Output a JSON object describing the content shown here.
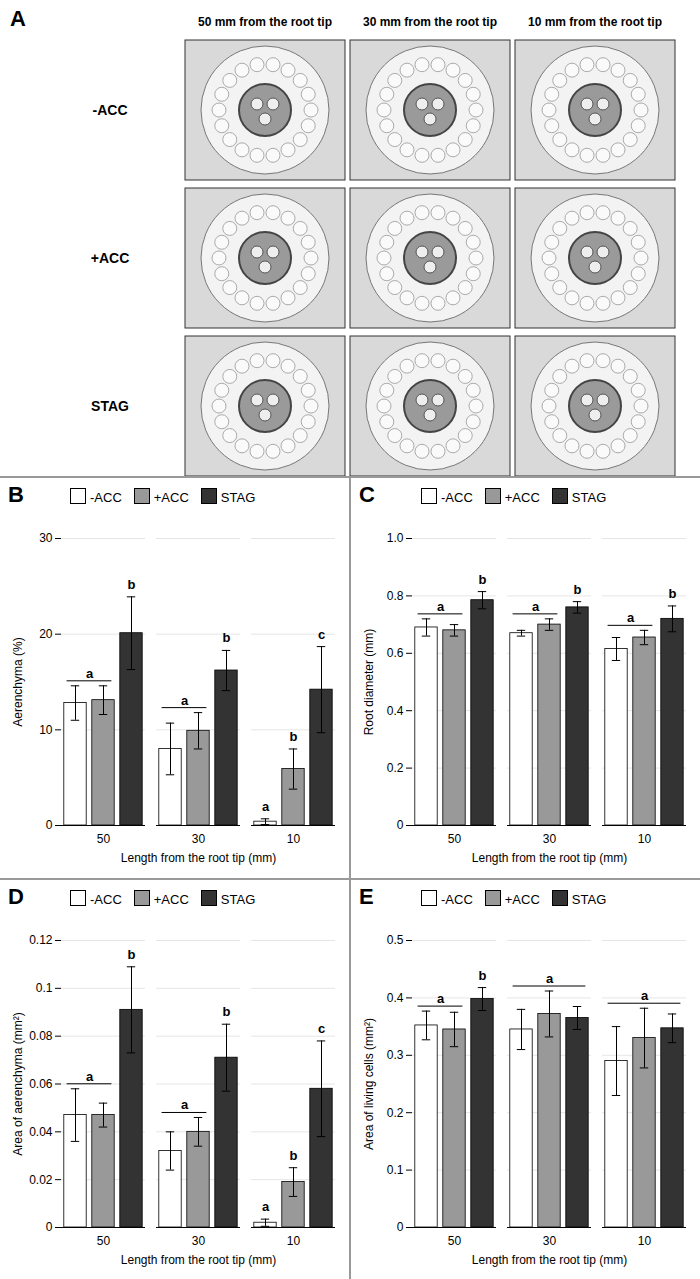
{
  "panel_a": {
    "label": "A",
    "columns": [
      "50 mm from the root tip",
      "30 mm from the root tip",
      "10 mm from the root tip"
    ],
    "rows": [
      "-ACC",
      "+ACC",
      "STAG"
    ]
  },
  "chart_data": [
    {
      "type": "bar",
      "title": "B",
      "categories": [
        "50",
        "30",
        "10"
      ],
      "xlabel": "Length from the root tip (mm)",
      "ylabel": "Aerenchyma (%)",
      "ylim": [
        0,
        30
      ],
      "yticks": [
        0,
        10,
        20,
        30
      ],
      "grid": true,
      "legend": "upper left",
      "series": [
        {
          "name": "-ACC",
          "color": "#ffffff",
          "values": [
            12.8,
            8.0,
            0.4
          ],
          "errors": [
            1.8,
            2.7,
            0.3
          ]
        },
        {
          "name": "+ACC",
          "color": "#999999",
          "values": [
            13.1,
            9.9,
            5.9
          ],
          "errors": [
            1.5,
            1.9,
            2.1
          ]
        },
        {
          "name": "STAG",
          "color": "#333333",
          "values": [
            20.1,
            16.2,
            14.2
          ],
          "errors": [
            3.8,
            2.1,
            4.5
          ]
        }
      ],
      "annotations": [
        {
          "text": "a",
          "category": "50",
          "series": [
            "-ACC",
            "+ACC"
          ]
        },
        {
          "text": "b",
          "category": "50",
          "series": [
            "STAG"
          ]
        },
        {
          "text": "a",
          "category": "30",
          "series": [
            "-ACC",
            "+ACC"
          ]
        },
        {
          "text": "b",
          "category": "30",
          "series": [
            "STAG"
          ]
        },
        {
          "text": "a",
          "category": "10",
          "series": [
            "-ACC"
          ]
        },
        {
          "text": "b",
          "category": "10",
          "series": [
            "+ACC"
          ]
        },
        {
          "text": "c",
          "category": "10",
          "series": [
            "STAG"
          ]
        }
      ]
    },
    {
      "type": "bar",
      "title": "C",
      "categories": [
        "50",
        "30",
        "10"
      ],
      "xlabel": "Length from the root tip (mm)",
      "ylabel": "Root diameter (mm)",
      "ylim": [
        0,
        1
      ],
      "yticks": [
        0,
        0.2,
        0.4,
        0.6,
        0.8,
        {
          "value": 1,
          "label": "1.0"
        }
      ],
      "grid": true,
      "legend": "upper left",
      "series": [
        {
          "name": "-ACC",
          "color": "#ffffff",
          "values": [
            0.69,
            0.67,
            0.615
          ],
          "errors": [
            0.03,
            0.01,
            0.04
          ]
        },
        {
          "name": "+ACC",
          "color": "#999999",
          "values": [
            0.68,
            0.7,
            0.655
          ],
          "errors": [
            0.02,
            0.02,
            0.025
          ]
        },
        {
          "name": "STAG",
          "color": "#333333",
          "values": [
            0.785,
            0.76,
            0.72
          ],
          "errors": [
            0.03,
            0.02,
            0.045
          ]
        }
      ],
      "annotations": [
        {
          "text": "a",
          "category": "50",
          "series": [
            "-ACC",
            "+ACC"
          ]
        },
        {
          "text": "b",
          "category": "50",
          "series": [
            "STAG"
          ]
        },
        {
          "text": "a",
          "category": "30",
          "series": [
            "-ACC",
            "+ACC"
          ]
        },
        {
          "text": "b",
          "category": "30",
          "series": [
            "STAG"
          ]
        },
        {
          "text": "a",
          "category": "10",
          "series": [
            "-ACC",
            "+ACC"
          ]
        },
        {
          "text": "b",
          "category": "10",
          "series": [
            "STAG"
          ]
        }
      ]
    },
    {
      "type": "bar",
      "title": "D",
      "categories": [
        "50",
        "30",
        "10"
      ],
      "xlabel": "Length from the root tip (mm)",
      "ylabel": "Area of aerenchyma (mm²)",
      "ylim": [
        0,
        0.12
      ],
      "yticks": [
        0,
        0.02,
        0.04,
        0.06,
        0.08,
        0.1,
        0.12
      ],
      "grid": true,
      "legend": "upper left",
      "series": [
        {
          "name": "-ACC",
          "color": "#ffffff",
          "values": [
            0.047,
            0.032,
            0.002
          ],
          "errors": [
            0.011,
            0.008,
            0.0015
          ]
        },
        {
          "name": "+ACC",
          "color": "#999999",
          "values": [
            0.047,
            0.04,
            0.019
          ],
          "errors": [
            0.005,
            0.006,
            0.006
          ]
        },
        {
          "name": "STAG",
          "color": "#333333",
          "values": [
            0.091,
            0.071,
            0.058
          ],
          "errors": [
            0.018,
            0.014,
            0.02
          ]
        }
      ],
      "annotations": [
        {
          "text": "a",
          "category": "50",
          "series": [
            "-ACC",
            "+ACC"
          ]
        },
        {
          "text": "b",
          "category": "50",
          "series": [
            "STAG"
          ]
        },
        {
          "text": "a",
          "category": "30",
          "series": [
            "-ACC",
            "+ACC"
          ]
        },
        {
          "text": "b",
          "category": "30",
          "series": [
            "STAG"
          ]
        },
        {
          "text": "a",
          "category": "10",
          "series": [
            "-ACC"
          ]
        },
        {
          "text": "b",
          "category": "10",
          "series": [
            "+ACC"
          ]
        },
        {
          "text": "c",
          "category": "10",
          "series": [
            "STAG"
          ]
        }
      ]
    },
    {
      "type": "bar",
      "title": "E",
      "categories": [
        "50",
        "30",
        "10"
      ],
      "xlabel": "Length from the root tip (mm)",
      "ylabel": "Area of living cells (mm²)",
      "ylim": [
        0,
        0.5
      ],
      "yticks": [
        0,
        0.1,
        0.2,
        0.3,
        0.4,
        0.5
      ],
      "grid": true,
      "legend": "upper left",
      "series": [
        {
          "name": "-ACC",
          "color": "#ffffff",
          "values": [
            0.352,
            0.345,
            0.29
          ],
          "errors": [
            0.025,
            0.035,
            0.06
          ]
        },
        {
          "name": "+ACC",
          "color": "#999999",
          "values": [
            0.345,
            0.372,
            0.33
          ],
          "errors": [
            0.03,
            0.04,
            0.052
          ]
        },
        {
          "name": "STAG",
          "color": "#333333",
          "values": [
            0.398,
            0.365,
            0.347
          ],
          "errors": [
            0.02,
            0.02,
            0.025
          ]
        }
      ],
      "annotations": [
        {
          "text": "a",
          "category": "50",
          "series": [
            "-ACC",
            "+ACC"
          ]
        },
        {
          "text": "b",
          "category": "50",
          "series": [
            "STAG"
          ]
        },
        {
          "text": "a",
          "category": "30",
          "series": [
            "-ACC",
            "+ACC",
            "STAG"
          ]
        },
        {
          "text": "a",
          "category": "10",
          "series": [
            "-ACC",
            "+ACC",
            "STAG"
          ]
        }
      ]
    }
  ]
}
